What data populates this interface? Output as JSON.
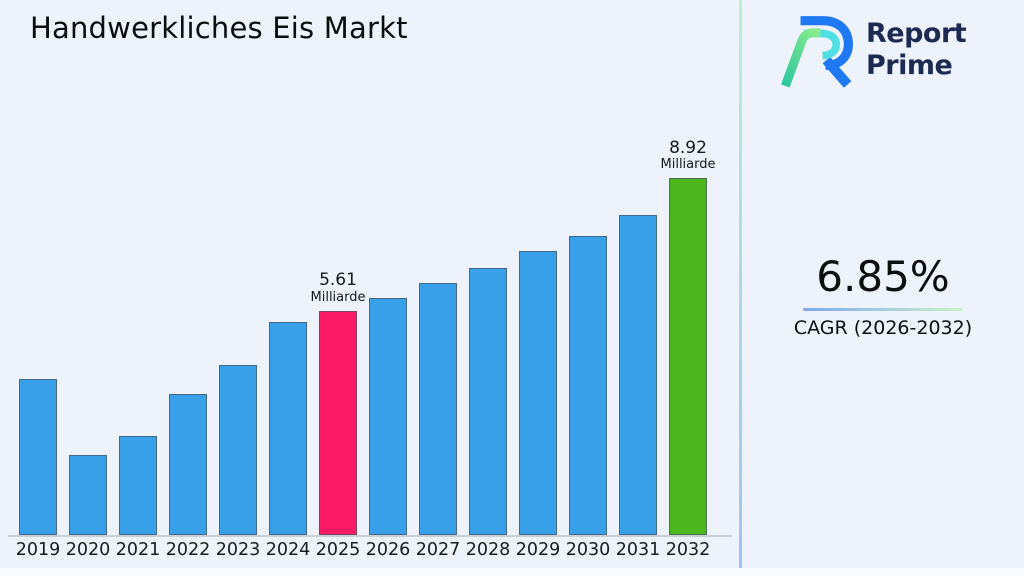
{
  "title": "Handwerkliches Eis Markt",
  "logo": {
    "line1": "Report",
    "line2": "Prime",
    "text_color": "#1d2a52"
  },
  "cagr": {
    "value": "6.85%",
    "label": "CAGR (2026-2032)"
  },
  "theme": {
    "background": "#edf2fb",
    "divider_gradient_top": "#bdeed3",
    "divider_gradient_bottom": "#9fc2f2",
    "underline_gradient_left": "#7ea8ee",
    "underline_gradient_right": "#c8f2c8",
    "logo_blue": "#1e79f2",
    "logo_cyan": "#4ee0e2",
    "logo_green_light": "#8ded8a",
    "logo_green_dark": "#2ec7a0"
  },
  "chart_data": {
    "type": "bar",
    "title": "Handwerkliches Eis Markt",
    "categories": [
      "2019",
      "2020",
      "2021",
      "2022",
      "2023",
      "2024",
      "2025",
      "2026",
      "2027",
      "2028",
      "2029",
      "2030",
      "2031",
      "2032"
    ],
    "values": [
      3.89,
      2.01,
      2.47,
      3.52,
      4.26,
      5.32,
      5.61,
      5.92,
      6.3,
      6.68,
      7.1,
      7.48,
      8.0,
      8.92
    ],
    "unit": "Milliarde",
    "xlabel": "",
    "ylabel": "",
    "ylim": [
      0,
      9
    ],
    "grid": false,
    "legend": false,
    "colors": {
      "default": "#38a0e9",
      "highlights": {
        "2025": "#fb1a66",
        "2032": "#4cb71d"
      }
    },
    "annotations": [
      {
        "category": "2025",
        "value": "5.61",
        "unit": "Milliarde"
      },
      {
        "category": "2032",
        "value": "8.92",
        "unit": "Milliarde"
      }
    ]
  }
}
